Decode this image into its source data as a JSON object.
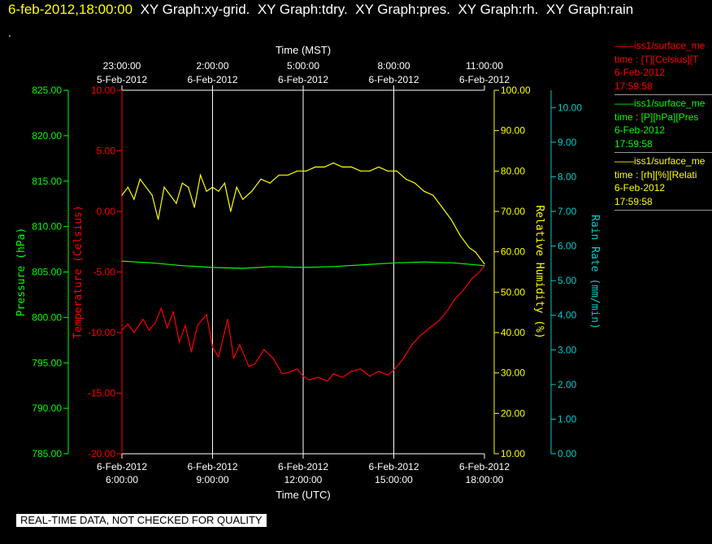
{
  "header": {
    "timestamp": "6-feb-2012,18:00:00",
    "titles": [
      "XY Graph:xy-grid.",
      "XY Graph:tdry.",
      "XY Graph:pres.",
      "XY Graph:rh.",
      "XY Graph:rain"
    ],
    "dot": "."
  },
  "footer": {
    "quality": "REAL-TIME DATA, NOT CHECKED FOR QUALITY"
  },
  "legend": [
    {
      "line1": "——iss1/surface_me",
      "line2": "time : [T][Celsius][T",
      "date": "6-Feb-2012",
      "time": "17:59:58",
      "color": "#ff0000"
    },
    {
      "line1": "——iss1/surface_me",
      "line2": "time : [P][hPa][Pres",
      "date": "6-Feb-2012",
      "time": "17:59:58",
      "color": "#00ff00"
    },
    {
      "line1": "——iss1/surface_me",
      "line2": "time : [rh][%][Relati",
      "date": "6-Feb-2012",
      "time": "17:59:58",
      "color": "#ffff00"
    }
  ],
  "chart_data": {
    "type": "line",
    "x_axis_bottom": {
      "label": "Time (UTC)",
      "ticks": [
        {
          "hour": 6,
          "date": "6-Feb-2012",
          "time": "6:00:00"
        },
        {
          "hour": 9,
          "date": "6-Feb-2012",
          "time": "9:00:00"
        },
        {
          "hour": 12,
          "date": "6-Feb-2012",
          "time": "12:00:00"
        },
        {
          "hour": 15,
          "date": "6-Feb-2012",
          "time": "15:00:00"
        },
        {
          "hour": 18,
          "date": "6-Feb-2012",
          "time": "18:00:00"
        }
      ],
      "range": [
        "6-Feb-2012 6:00:00",
        "6-Feb-2012 18:00:00"
      ]
    },
    "x_axis_top": {
      "label": "Time (MST)",
      "ticks": [
        {
          "time": "23:00:00",
          "date": "5-Feb-2012"
        },
        {
          "time": "2:00:00",
          "date": "6-Feb-2012"
        },
        {
          "time": "5:00:00",
          "date": "6-Feb-2012"
        },
        {
          "time": "8:00:00",
          "date": "6-Feb-2012"
        },
        {
          "time": "11:00:00",
          "date": "6-Feb-2012"
        }
      ]
    },
    "y_axes": [
      {
        "id": "pressure",
        "label": "Pressure (hPa)",
        "color": "#00ff00",
        "min": 785,
        "max": 825,
        "ticks": [
          "785.00",
          "790.00",
          "795.00",
          "800.00",
          "805.00",
          "810.00",
          "815.00",
          "820.00",
          "825.00"
        ]
      },
      {
        "id": "temperature",
        "label": "Temperature (Celsius)",
        "color": "#ff0000",
        "min": -20,
        "max": 10,
        "ticks": [
          "-20.00",
          "-15.00",
          "-10.00",
          "-5.00",
          "0.00",
          "5.00",
          "10.00"
        ]
      },
      {
        "id": "humidity",
        "label": "Relative Humidity (%)",
        "color": "#ffff00",
        "min": 10,
        "max": 100,
        "ticks": [
          "10.00",
          "20.00",
          "30.00",
          "40.00",
          "50.00",
          "60.00",
          "70.00",
          "80.00",
          "90.00",
          "100.00"
        ]
      },
      {
        "id": "rain",
        "label": "Rain Rate (mm/min)",
        "color": "#00cccc",
        "min": 0,
        "max": 10.5,
        "ticks": [
          "0.00",
          "1.00",
          "2.00",
          "3.00",
          "4.00",
          "5.00",
          "6.00",
          "7.00",
          "8.00",
          "9.00",
          "10.00"
        ]
      }
    ],
    "grid": true,
    "series": [
      {
        "axis": "temperature",
        "color": "#ff0000",
        "x": [
          6.0,
          6.2,
          6.4,
          6.7,
          6.9,
          7.1,
          7.3,
          7.5,
          7.7,
          7.9,
          8.1,
          8.3,
          8.5,
          8.8,
          9.0,
          9.2,
          9.5,
          9.7,
          9.9,
          10.2,
          10.4,
          10.7,
          11.0,
          11.3,
          11.5,
          11.8,
          12.0,
          12.2,
          12.5,
          12.8,
          13.0,
          13.3,
          13.6,
          13.9,
          14.2,
          14.5,
          14.8,
          15.0,
          15.3,
          15.6,
          15.9,
          16.2,
          16.5,
          16.8,
          17.0,
          17.3,
          17.6,
          17.8,
          18.0
        ],
        "y": [
          -9.8,
          -9.3,
          -10.0,
          -8.9,
          -9.8,
          -9.2,
          -8.0,
          -9.6,
          -8.3,
          -10.8,
          -9.4,
          -11.6,
          -9.4,
          -8.5,
          -11.2,
          -12.0,
          -8.9,
          -12.1,
          -11.0,
          -12.8,
          -12.6,
          -11.4,
          -12.1,
          -13.4,
          -13.3,
          -13.0,
          -13.6,
          -13.9,
          -13.7,
          -14.0,
          -13.4,
          -13.7,
          -13.2,
          -13.0,
          -13.6,
          -13.2,
          -13.5,
          -13.1,
          -12.2,
          -11.0,
          -10.2,
          -9.6,
          -9.0,
          -8.1,
          -7.3,
          -6.5,
          -5.5,
          -5.1,
          -4.5
        ]
      },
      {
        "axis": "pressure",
        "color": "#00ff00",
        "x": [
          6.0,
          7.0,
          8.0,
          9.0,
          10.0,
          11.0,
          12.0,
          13.0,
          14.0,
          15.0,
          16.0,
          17.0,
          18.0
        ],
        "y": [
          806.2,
          806.0,
          805.7,
          805.5,
          805.4,
          805.6,
          805.5,
          805.6,
          805.8,
          806.0,
          806.1,
          806.0,
          805.7
        ]
      },
      {
        "axis": "humidity",
        "color": "#ffff00",
        "x": [
          6.0,
          6.2,
          6.4,
          6.6,
          6.8,
          7.0,
          7.2,
          7.4,
          7.6,
          7.8,
          8.0,
          8.2,
          8.4,
          8.6,
          8.8,
          9.0,
          9.2,
          9.4,
          9.6,
          9.8,
          10.0,
          10.3,
          10.6,
          10.9,
          11.2,
          11.5,
          11.8,
          12.1,
          12.4,
          12.7,
          13.0,
          13.3,
          13.6,
          13.9,
          14.2,
          14.5,
          14.8,
          15.1,
          15.4,
          15.7,
          16.0,
          16.3,
          16.6,
          16.9,
          17.2,
          17.5,
          17.7,
          17.9,
          18.0
        ],
        "y": [
          74,
          76,
          73,
          78,
          76,
          74,
          68,
          76,
          74,
          72,
          77,
          76,
          71,
          79,
          75,
          76,
          75,
          77,
          70,
          76,
          73,
          75,
          78,
          77,
          79,
          79,
          80,
          80,
          81,
          81,
          82,
          81,
          81,
          80,
          80,
          81,
          80,
          80,
          78,
          77,
          75,
          74,
          71,
          68,
          64,
          61,
          60,
          58,
          57
        ]
      }
    ]
  }
}
